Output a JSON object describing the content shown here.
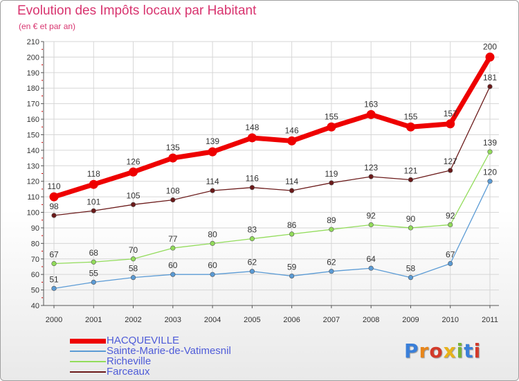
{
  "title": "Evolution des Impôts locaux par Habitant",
  "subtitle": "(en € et par an)",
  "logo": {
    "text": "Proxiti",
    "colors": [
      "#3a7fd9",
      "#e8861a",
      "#d33a2a",
      "#e8b21a",
      "#7ab335",
      "#3a7fd9",
      "#d33a2a"
    ]
  },
  "chart_data": {
    "type": "line",
    "x": [
      "2000",
      "2001",
      "2002",
      "2003",
      "2004",
      "2005",
      "2006",
      "2007",
      "2008",
      "2009",
      "2010",
      "2011"
    ],
    "ylim": [
      40,
      210
    ],
    "yticks": [
      40,
      50,
      60,
      70,
      80,
      90,
      100,
      110,
      120,
      130,
      140,
      150,
      160,
      170,
      180,
      190,
      200,
      210
    ],
    "grid": true,
    "legend_position": "bottom-left",
    "series": [
      {
        "name": "Farceaux",
        "color": "#6b1a1a",
        "values": [
          98,
          101,
          105,
          108,
          114,
          116,
          114,
          119,
          123,
          121,
          127,
          181
        ]
      },
      {
        "name": "Richeville",
        "color": "#92dc5a",
        "values": [
          67,
          68,
          70,
          77,
          80,
          83,
          86,
          89,
          92,
          90,
          92,
          139
        ]
      },
      {
        "name": "Sainte-Marie-de-Vatimesnil",
        "color": "#5b9bd5",
        "values": [
          51,
          55,
          58,
          60,
          60,
          62,
          59,
          62,
          64,
          58,
          67,
          120
        ]
      },
      {
        "name": "HACQUEVILLE",
        "color": "#ee0000",
        "values": [
          110,
          118,
          126,
          135,
          139,
          148,
          146,
          155,
          163,
          155,
          157,
          200
        ]
      }
    ]
  },
  "legend": [
    {
      "label": "HACQUEVILLE",
      "color": "#ee0000",
      "thickness": 7
    },
    {
      "label": "Sainte-Marie-de-Vatimesnil",
      "color": "#5b9bd5",
      "thickness": 2
    },
    {
      "label": "Richeville",
      "color": "#92dc5a",
      "thickness": 2
    },
    {
      "label": "Farceaux",
      "color": "#6b1a1a",
      "thickness": 2
    }
  ]
}
